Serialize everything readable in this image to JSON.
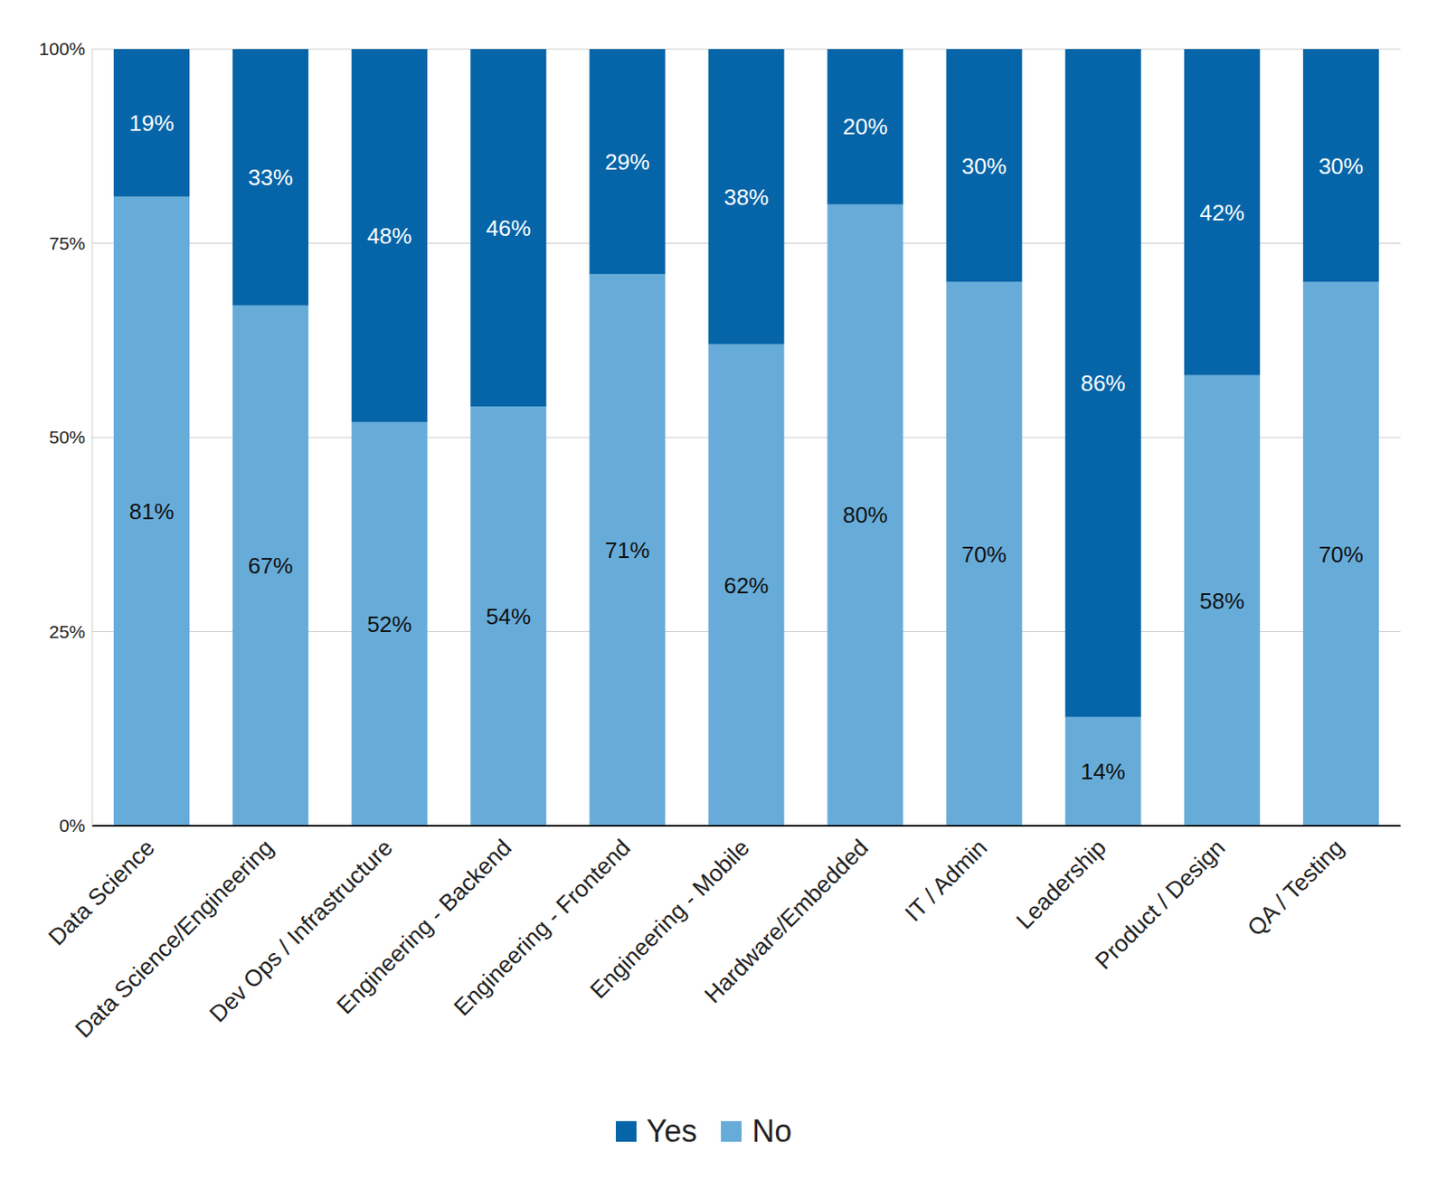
{
  "chart_data": {
    "type": "bar",
    "stacked": true,
    "data_labels": true,
    "grid": true,
    "legend": "bottom",
    "categories": [
      "Data Science",
      "Data Science/Engineering",
      "Dev Ops / Infrastructure",
      "Engineering - Backend",
      "Engineering - Frontend",
      "Engineering - Mobile",
      "Hardware/Embedded",
      "IT / Admin",
      "Leadership",
      "Product / Design",
      "QA / Testing"
    ],
    "series": [
      {
        "name": "Yes",
        "color": "#0565a8",
        "values": [
          19,
          33,
          48,
          46,
          29,
          38,
          20,
          30,
          86,
          42,
          30
        ],
        "value_labels": [
          "19%",
          "33%",
          "48%",
          "46%",
          "29%",
          "38%",
          "20%",
          "30%",
          "86%",
          "42%",
          "30%"
        ]
      },
      {
        "name": "No",
        "color": "#67acd9",
        "values": [
          81,
          67,
          52,
          54,
          71,
          62,
          80,
          70,
          14,
          58,
          70
        ],
        "value_labels": [
          "81%",
          "67%",
          "52%",
          "54%",
          "71%",
          "62%",
          "80%",
          "70%",
          "14%",
          "58%",
          "70%"
        ]
      }
    ],
    "ylim": [
      0,
      100
    ],
    "yticks": [
      {
        "value": 0,
        "label": "0%"
      },
      {
        "value": 25,
        "label": "25%"
      },
      {
        "value": 50,
        "label": "50%"
      },
      {
        "value": 75,
        "label": "75%"
      },
      {
        "value": 100,
        "label": "100%"
      }
    ]
  }
}
